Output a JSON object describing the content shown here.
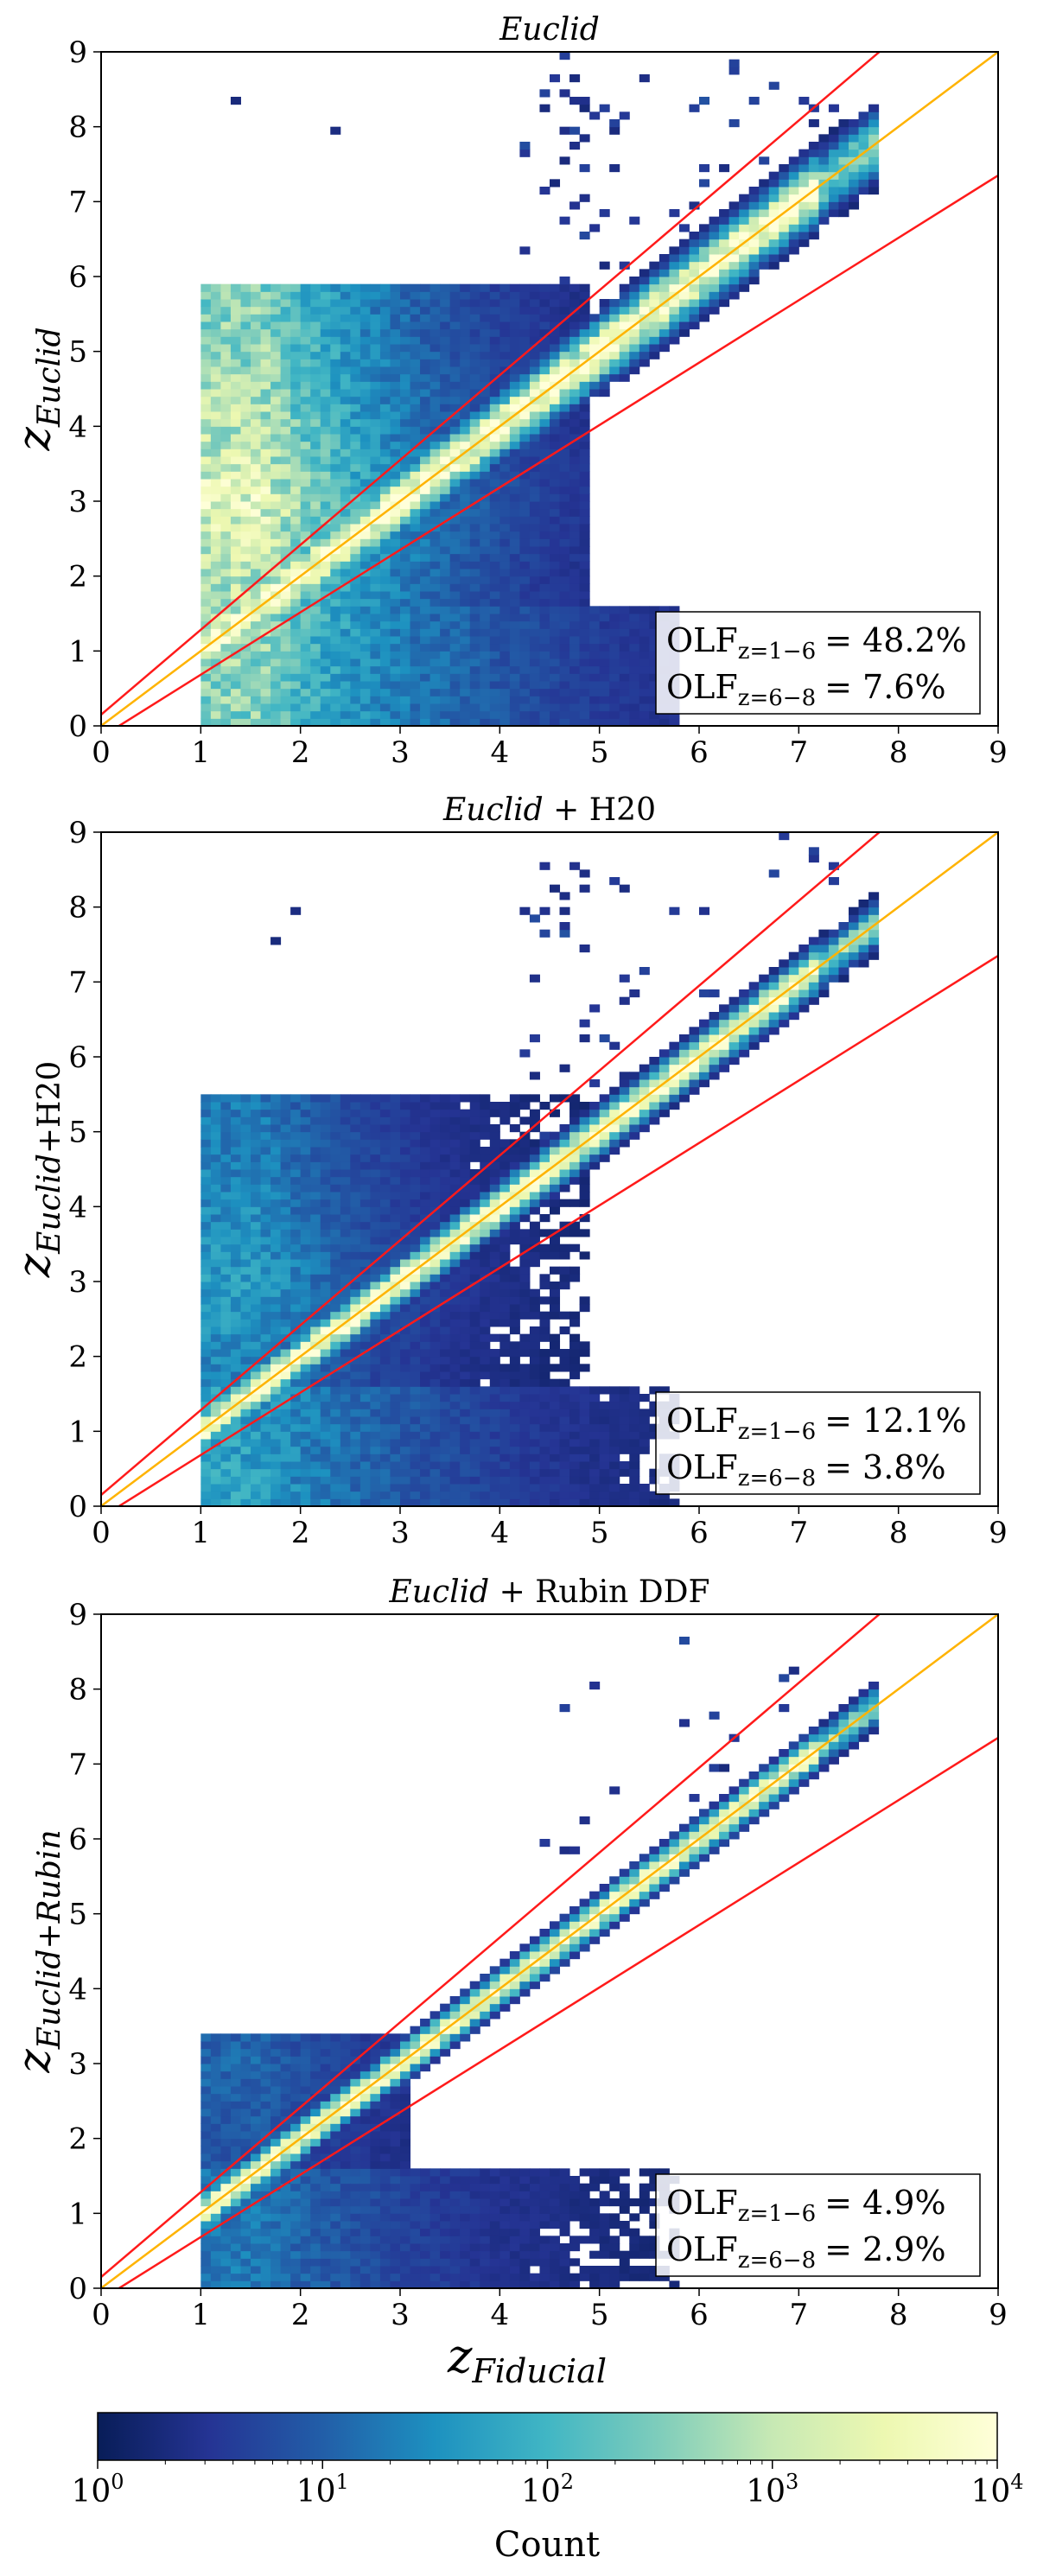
{
  "figure": {
    "shared_xlabel": {
      "z": "z",
      "sub": "Fiducial"
    },
    "colorbar": {
      "label": "Count",
      "ticks": [
        {
          "base": "10",
          "exp": "0"
        },
        {
          "base": "10",
          "exp": "1"
        },
        {
          "base": "10",
          "exp": "2"
        },
        {
          "base": "10",
          "exp": "3"
        },
        {
          "base": "10",
          "exp": "4"
        }
      ],
      "colors": [
        "#081d58",
        "#253494",
        "#225ea8",
        "#1d91c0",
        "#41b6c4",
        "#7fcdbb",
        "#c7e9b4",
        "#edf8b1",
        "#ffffd9"
      ]
    },
    "line_colors": {
      "one_to_one": "#ffb300",
      "outlier_bounds": "#ff1a1a"
    }
  },
  "chart_data": [
    {
      "type": "heatmap",
      "title_italic": "Euclid",
      "title_rest": "",
      "ylabel": {
        "z": "z",
        "sub_italic": "Euclid",
        "sub_rest": ""
      },
      "xlim": [
        0,
        9
      ],
      "ylim": [
        0,
        9
      ],
      "xticks": [
        "0",
        "1",
        "2",
        "3",
        "4",
        "5",
        "6",
        "7",
        "8",
        "9"
      ],
      "yticks": [
        "0",
        "1",
        "2",
        "3",
        "4",
        "5",
        "6",
        "7",
        "8",
        "9"
      ],
      "lines": {
        "one_to_one": [
          [
            0,
            0
          ],
          [
            9,
            9
          ]
        ],
        "upper": [
          [
            0,
            0.15
          ],
          [
            9,
            10.35
          ]
        ],
        "lower": [
          [
            0,
            -0.15
          ],
          [
            9,
            7.35
          ]
        ]
      },
      "olf": [
        {
          "label": "OLF",
          "sub": "z=1−6",
          "value": "= 48.2%"
        },
        {
          "label": "OLF",
          "sub": "z=6−8",
          "value": "= 7.6%"
        }
      ],
      "model": {
        "ridge": 1.0,
        "ridgeWidth": 0.25,
        "low": 1.0,
        "veil": 0.85,
        "veilTop": 5.9,
        "veilX": [
          1.0,
          4.9
        ],
        "tail": 0.8,
        "seed": 11
      }
    },
    {
      "type": "heatmap",
      "title_italic": "Euclid",
      "title_rest": " + H20",
      "ylabel": {
        "z": "z",
        "sub_italic": "Euclid",
        "sub_rest": "+H20"
      },
      "xlim": [
        0,
        9
      ],
      "ylim": [
        0,
        9
      ],
      "xticks": [
        "0",
        "1",
        "2",
        "3",
        "4",
        "5",
        "6",
        "7",
        "8",
        "9"
      ],
      "yticks": [
        "0",
        "1",
        "2",
        "3",
        "4",
        "5",
        "6",
        "7",
        "8",
        "9"
      ],
      "lines": {
        "one_to_one": [
          [
            0,
            0
          ],
          [
            9,
            9
          ]
        ],
        "upper": [
          [
            0,
            0.15
          ],
          [
            9,
            10.35
          ]
        ],
        "lower": [
          [
            0,
            -0.15
          ],
          [
            9,
            7.35
          ]
        ]
      },
      "olf": [
        {
          "label": "OLF",
          "sub": "z=1−6",
          "value": "= 12.1%"
        },
        {
          "label": "OLF",
          "sub": "z=6−8",
          "value": "= 3.8%"
        }
      ],
      "model": {
        "ridge": 1.0,
        "ridgeWidth": 0.17,
        "low": 0.65,
        "veil": 0.35,
        "veilTop": 5.5,
        "veilX": [
          1.0,
          4.9
        ],
        "tail": 0.5,
        "seed": 23
      }
    },
    {
      "type": "heatmap",
      "title_italic": "Euclid",
      "title_rest": " + Rubin DDF",
      "ylabel": {
        "z": "z",
        "sub_italic": "Euclid+Rubin",
        "sub_rest": ""
      },
      "xlim": [
        0,
        9
      ],
      "ylim": [
        0,
        9
      ],
      "xticks": [
        "0",
        "1",
        "2",
        "3",
        "4",
        "5",
        "6",
        "7",
        "8",
        "9"
      ],
      "yticks": [
        "0",
        "1",
        "2",
        "3",
        "4",
        "5",
        "6",
        "7",
        "8",
        "9"
      ],
      "lines": {
        "one_to_one": [
          [
            0,
            0
          ],
          [
            9,
            9
          ]
        ],
        "upper": [
          [
            0,
            0.15
          ],
          [
            9,
            10.35
          ]
        ],
        "lower": [
          [
            0,
            -0.15
          ],
          [
            9,
            7.35
          ]
        ]
      },
      "olf": [
        {
          "label": "OLF",
          "sub": "z=1−6",
          "value": "= 4.9%"
        },
        {
          "label": "OLF",
          "sub": "z=6−8",
          "value": "= 2.9%"
        }
      ],
      "model": {
        "ridge": 1.0,
        "ridgeWidth": 0.14,
        "low": 0.45,
        "veil": 0.2,
        "veilTop": 3.4,
        "veilX": [
          1.0,
          3.1
        ],
        "tail": 0.3,
        "seed": 37
      }
    }
  ]
}
